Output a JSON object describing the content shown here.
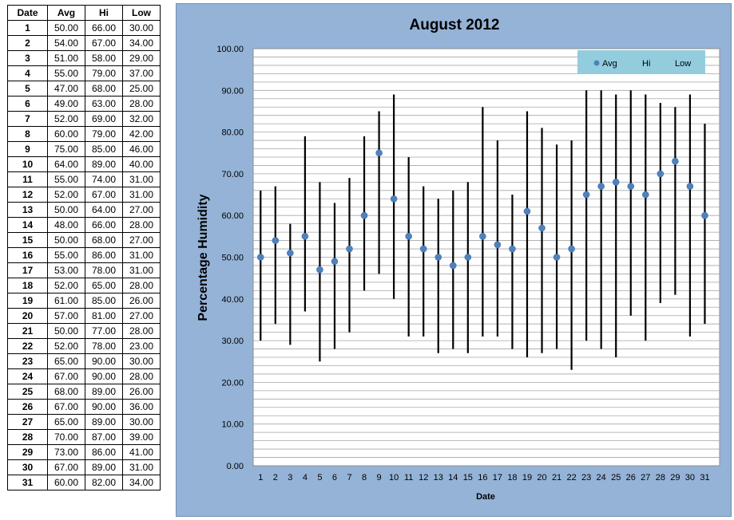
{
  "table": {
    "headers": [
      "Date",
      "Avg",
      "Hi",
      "Low"
    ],
    "rows": [
      [
        "1",
        "50.00",
        "66.00",
        "30.00"
      ],
      [
        "2",
        "54.00",
        "67.00",
        "34.00"
      ],
      [
        "3",
        "51.00",
        "58.00",
        "29.00"
      ],
      [
        "4",
        "55.00",
        "79.00",
        "37.00"
      ],
      [
        "5",
        "47.00",
        "68.00",
        "25.00"
      ],
      [
        "6",
        "49.00",
        "63.00",
        "28.00"
      ],
      [
        "7",
        "52.00",
        "69.00",
        "32.00"
      ],
      [
        "8",
        "60.00",
        "79.00",
        "42.00"
      ],
      [
        "9",
        "75.00",
        "85.00",
        "46.00"
      ],
      [
        "10",
        "64.00",
        "89.00",
        "40.00"
      ],
      [
        "11",
        "55.00",
        "74.00",
        "31.00"
      ],
      [
        "12",
        "52.00",
        "67.00",
        "31.00"
      ],
      [
        "13",
        "50.00",
        "64.00",
        "27.00"
      ],
      [
        "14",
        "48.00",
        "66.00",
        "28.00"
      ],
      [
        "15",
        "50.00",
        "68.00",
        "27.00"
      ],
      [
        "16",
        "55.00",
        "86.00",
        "31.00"
      ],
      [
        "17",
        "53.00",
        "78.00",
        "31.00"
      ],
      [
        "18",
        "52.00",
        "65.00",
        "28.00"
      ],
      [
        "19",
        "61.00",
        "85.00",
        "26.00"
      ],
      [
        "20",
        "57.00",
        "81.00",
        "27.00"
      ],
      [
        "21",
        "50.00",
        "77.00",
        "28.00"
      ],
      [
        "22",
        "52.00",
        "78.00",
        "23.00"
      ],
      [
        "23",
        "65.00",
        "90.00",
        "30.00"
      ],
      [
        "24",
        "67.00",
        "90.00",
        "28.00"
      ],
      [
        "25",
        "68.00",
        "89.00",
        "26.00"
      ],
      [
        "26",
        "67.00",
        "90.00",
        "36.00"
      ],
      [
        "27",
        "65.00",
        "89.00",
        "30.00"
      ],
      [
        "28",
        "70.00",
        "87.00",
        "39.00"
      ],
      [
        "29",
        "73.00",
        "86.00",
        "41.00"
      ],
      [
        "30",
        "67.00",
        "89.00",
        "31.00"
      ],
      [
        "31",
        "60.00",
        "82.00",
        "34.00"
      ]
    ]
  },
  "chart_data": {
    "type": "scatter",
    "title": "August 2012",
    "xlabel": "Date",
    "ylabel": "Percentage Humidity",
    "x": [
      1,
      2,
      3,
      4,
      5,
      6,
      7,
      8,
      9,
      10,
      11,
      12,
      13,
      14,
      15,
      16,
      17,
      18,
      19,
      20,
      21,
      22,
      23,
      24,
      25,
      26,
      27,
      28,
      29,
      30,
      31
    ],
    "ylim": [
      0,
      100
    ],
    "y_ticks": [
      "0.00",
      "10.00",
      "20.00",
      "30.00",
      "40.00",
      "50.00",
      "60.00",
      "70.00",
      "80.00",
      "90.00",
      "100.00"
    ],
    "series": [
      {
        "name": "Avg",
        "values": [
          50,
          54,
          51,
          55,
          47,
          49,
          52,
          60,
          75,
          64,
          55,
          52,
          50,
          48,
          50,
          55,
          53,
          52,
          61,
          57,
          50,
          52,
          65,
          67,
          68,
          67,
          65,
          70,
          73,
          67,
          60
        ]
      },
      {
        "name": "Hi",
        "values": [
          66,
          67,
          58,
          79,
          68,
          63,
          69,
          79,
          85,
          89,
          74,
          67,
          64,
          66,
          68,
          86,
          78,
          65,
          85,
          81,
          77,
          78,
          90,
          90,
          89,
          90,
          89,
          87,
          86,
          89,
          82
        ]
      },
      {
        "name": "Low",
        "values": [
          30,
          34,
          29,
          37,
          25,
          28,
          32,
          42,
          46,
          40,
          31,
          31,
          27,
          28,
          27,
          31,
          31,
          28,
          26,
          27,
          28,
          23,
          30,
          28,
          26,
          36,
          30,
          39,
          41,
          31,
          34
        ]
      }
    ],
    "grid": true,
    "legend": "top-right",
    "colors": {
      "panel": "#95b3d7",
      "plot": "#ffffff",
      "avg_marker": "#4f81bd",
      "range_bar": "#000000",
      "legend_bg": "#93cddd",
      "grid": "#a6a6a6"
    }
  }
}
